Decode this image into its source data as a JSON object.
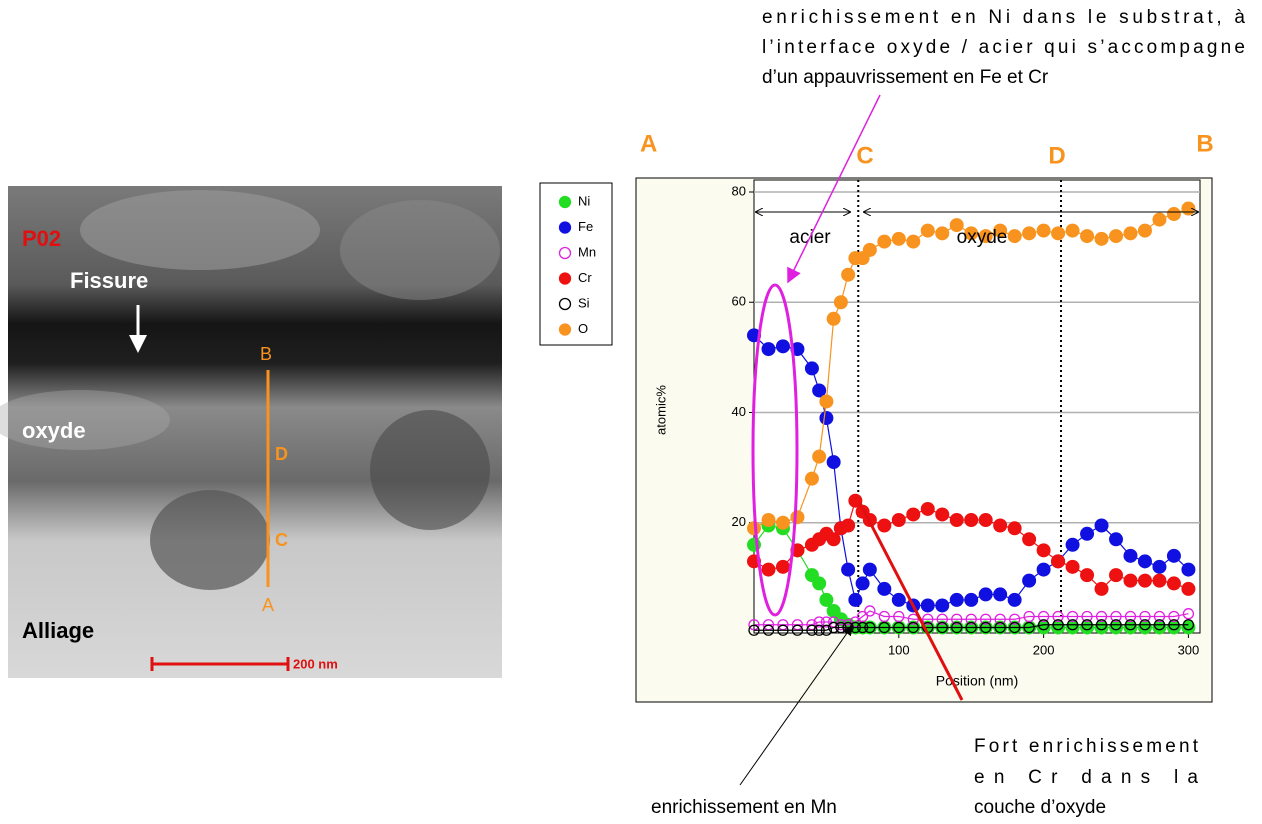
{
  "chart_data": {
    "type": "scatter-line",
    "y_label": "atomic%",
    "x_label": "Position (nm)",
    "xlim": [
      0,
      308
    ],
    "ylim": [
      0,
      80
    ],
    "xticks": [
      100,
      200,
      300
    ],
    "yticks": [
      20,
      40,
      60,
      80
    ],
    "grid": true,
    "vlines": [
      72,
      212
    ],
    "x": [
      0,
      10,
      20,
      30,
      40,
      45,
      50,
      55,
      60,
      65,
      70,
      75,
      80,
      90,
      100,
      110,
      120,
      130,
      140,
      150,
      160,
      170,
      180,
      190,
      200,
      210,
      220,
      230,
      240,
      250,
      260,
      270,
      280,
      290,
      300
    ],
    "series": [
      {
        "name": "Ni",
        "color": "#22dd22",
        "marker": "filled",
        "values": [
          16,
          19.5,
          19,
          15,
          10.5,
          9,
          6,
          4,
          2.5,
          1.5,
          1,
          1,
          1,
          1,
          1,
          1,
          1,
          1,
          1,
          1,
          1,
          1,
          1,
          1,
          1,
          1,
          1,
          1,
          1,
          1,
          1,
          1,
          1,
          1,
          1
        ]
      },
      {
        "name": "Fe",
        "color": "#1010e0",
        "marker": "filled",
        "values": [
          54,
          51.5,
          52,
          51.5,
          48,
          44,
          39,
          31,
          19,
          11.5,
          6,
          9,
          11.5,
          8,
          6,
          5,
          5,
          5,
          6,
          6,
          7,
          7,
          6,
          9.5,
          11.5,
          13,
          16,
          18,
          19.5,
          17,
          14,
          13,
          12,
          14,
          11.5
        ]
      },
      {
        "name": "Mn",
        "color": "#e020e0",
        "marker": "hollow",
        "values": [
          1.5,
          1.5,
          1.5,
          1.5,
          1.5,
          2,
          2,
          2,
          1.5,
          1.5,
          2,
          3,
          4,
          3,
          3,
          2.5,
          2.5,
          2.5,
          2.5,
          2.5,
          2.5,
          2.5,
          2.5,
          3,
          3,
          3,
          3,
          3,
          3,
          3,
          3,
          3,
          3,
          3,
          3.5
        ]
      },
      {
        "name": "Cr",
        "color": "#ee1111",
        "marker": "filled",
        "values": [
          13,
          11.5,
          12,
          15,
          16,
          17,
          18,
          17,
          19,
          19.5,
          24,
          22,
          20.5,
          19.5,
          20.5,
          21.5,
          22.5,
          21.5,
          20.5,
          20.5,
          20.5,
          19.5,
          19,
          17,
          15,
          13,
          12,
          10.5,
          8,
          10.5,
          9.5,
          9.5,
          9.5,
          9,
          8
        ]
      },
      {
        "name": "Si",
        "color": "#000000",
        "marker": "hollow",
        "values": [
          0.5,
          0.5,
          0.5,
          0.5,
          0.5,
          0.5,
          0.5,
          1,
          1,
          1,
          1,
          1,
          1,
          1,
          1,
          1,
          1,
          1,
          1,
          1,
          1,
          1,
          1,
          1,
          1.5,
          1.5,
          1.5,
          1.5,
          1.5,
          1.5,
          1.5,
          1.5,
          1.5,
          1.5,
          1.5
        ]
      },
      {
        "name": "O",
        "color": "#f7931e",
        "marker": "filled",
        "values": [
          19,
          20.5,
          20,
          21,
          28,
          32,
          42,
          57,
          60,
          65,
          68,
          68,
          69.5,
          71,
          71.5,
          71,
          73,
          72.5,
          74,
          72.5,
          72,
          73,
          72,
          72.5,
          73,
          72.5,
          73,
          72,
          71.5,
          72,
          72.5,
          73,
          75,
          76,
          77
        ]
      }
    ]
  },
  "chart_letters": {
    "A": "A",
    "C": "C",
    "D": "D",
    "B": "B"
  },
  "regions": {
    "acier": "acier",
    "oxyde": "oxyde"
  },
  "annotations": {
    "top": [
      "enrichissement en Ni dans le substrat, à",
      "l’interface oxyde / acier qui s’accompagne",
      "d’un appauvrissement en Fe et Cr"
    ],
    "mn": "enrichissement en Mn",
    "cr": [
      "Fort enrichissement",
      "en Cr dans la",
      "couche d’oxyde"
    ]
  },
  "image": {
    "sample": "P02",
    "fissure": "Fissure",
    "oxyde": "oxyde",
    "alliage": "Alliage",
    "scale": "200 nm",
    "line_a": "A",
    "line_b": "B",
    "line_c": "C",
    "line_d": "D"
  }
}
